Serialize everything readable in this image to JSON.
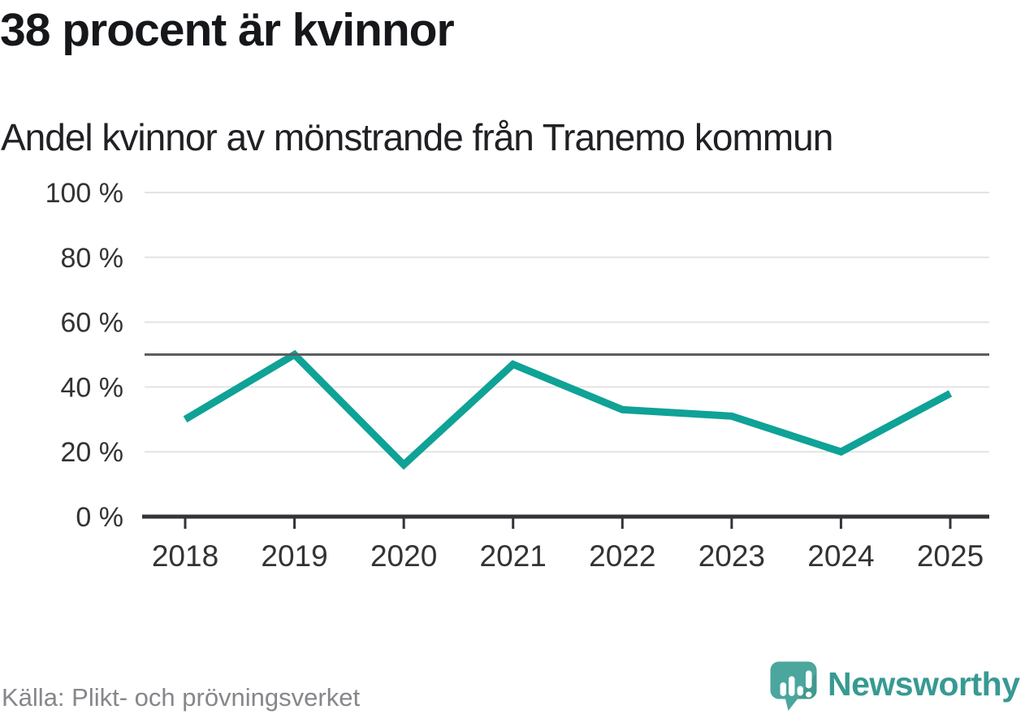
{
  "chart_data": {
    "type": "line",
    "title": "38 procent är kvinnor",
    "subtitle": "Andel kvinnor av mönstrande från Tranemo kommun",
    "categories": [
      "2018",
      "2019",
      "2020",
      "2021",
      "2022",
      "2023",
      "2024",
      "2025"
    ],
    "series": [
      {
        "name": "Andel kvinnor",
        "values": [
          30,
          50,
          16,
          47,
          33,
          31,
          20,
          38
        ]
      }
    ],
    "ylim": [
      0,
      100
    ],
    "yticks": [
      0,
      20,
      40,
      60,
      80,
      100
    ],
    "ytick_suffix": " %",
    "reference_line": 50,
    "grid": true,
    "legend_position": "none"
  },
  "footer": {
    "source": "Källa: Plikt- och prövningsverket",
    "brand": "Newsworthy",
    "logo_icon": "speech-bubble-bar-chart-icon"
  },
  "colors": {
    "accent_line": "#0FA296",
    "grid_line": "#E3E3E3",
    "reference_line": "#5C5D61",
    "axis_line": "#333438",
    "tick_label": "#333333",
    "title_text": "#15171A",
    "subtitle_text": "#202124",
    "source_text": "#86868B",
    "brand_text": "#379A92",
    "logo_fill": "#4BA69E",
    "logo_shade": "#41998F",
    "logo_glyph": "#FFFFFF"
  }
}
